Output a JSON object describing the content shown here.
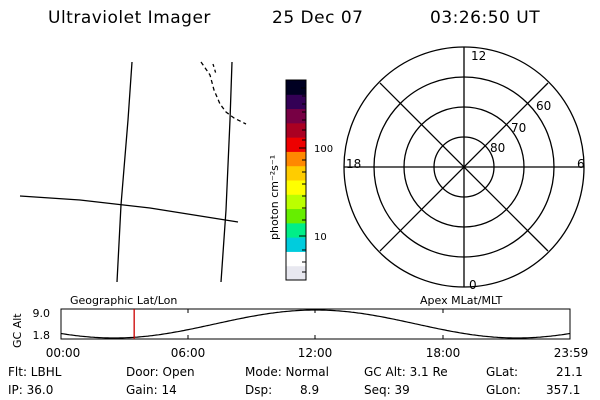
{
  "header": {
    "instrument": "Ultraviolet Imager",
    "date": "25 Dec 07",
    "time": "03:26:50 UT"
  },
  "colorbar": {
    "unit_label": "photon cm⁻²s⁻¹",
    "tick_100": "100",
    "tick_10": "10",
    "colors": [
      "#e8e8f0",
      "#ffffff",
      "#00ccdd",
      "#00ee88",
      "#66ee00",
      "#bbff00",
      "#ffff00",
      "#ffcc00",
      "#ff8800",
      "#ee0000",
      "#aa0022",
      "#770044",
      "#330055",
      "#000022"
    ]
  },
  "polar": {
    "mlt_12": "12",
    "mlt_18": "18",
    "mlt_6": "6",
    "mlt_0": "0",
    "lat_60": "60",
    "lat_70": "70",
    "lat_80": "80"
  },
  "grid_labels": {
    "left": "Geographic Lat/Lon",
    "right": "Apex MLat/MLT"
  },
  "altitude_plot": {
    "ylabel": "GC Alt",
    "ymax_label": "9.0",
    "ymin_label": "1.8",
    "ticks": [
      "00:00",
      "06:00",
      "12:00",
      "18:00",
      "23:59"
    ],
    "marker_hours": 3.45,
    "marker_color": "#cc0000"
  },
  "status": {
    "filter": "Flt: LBHL",
    "ip": "IP: 36.0",
    "door": "Door: Open",
    "gain": "Gain: 14",
    "mode": "Mode: Normal",
    "dsp_label": "Dsp:",
    "dsp_value": "8.9",
    "gc_alt": "GC Alt: 3.1 Re",
    "seq": "Seq: 39",
    "glat_label": "GLat:",
    "glat_value": "21.1",
    "glon_label": "GLon:",
    "glon_value": "357.1"
  }
}
